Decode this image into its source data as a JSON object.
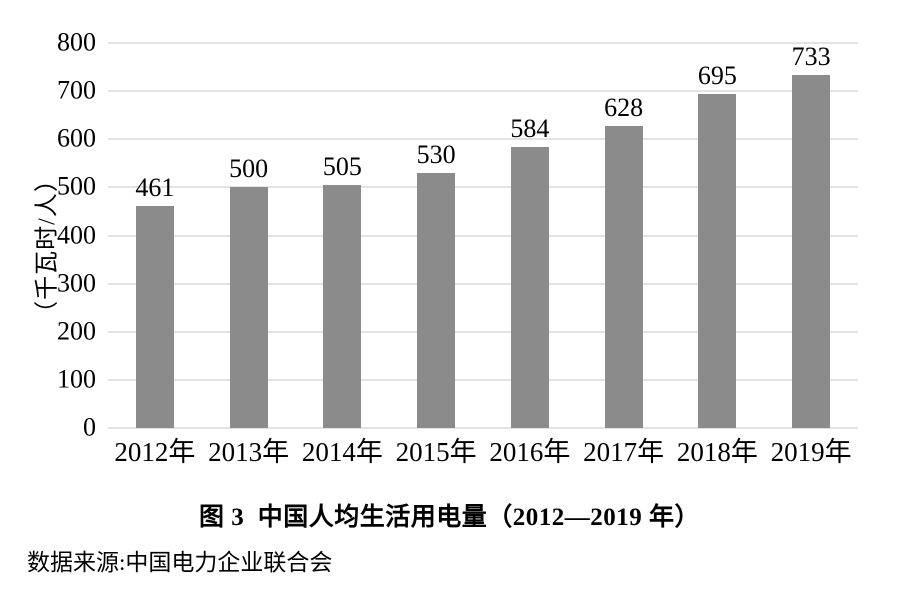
{
  "chart_data": {
    "type": "bar",
    "title": "图 3  中国人均生活用电量（2012—2019 年）",
    "categories": [
      "2012年",
      "2013年",
      "2014年",
      "2015年",
      "2016年",
      "2017年",
      "2018年",
      "2019年"
    ],
    "values": [
      461,
      500,
      505,
      530,
      584,
      628,
      695,
      733
    ],
    "ylabel": "（千瓦时/人）",
    "ylim": [
      0,
      800
    ],
    "yticks": [
      0,
      100,
      200,
      300,
      400,
      500,
      600,
      700,
      800
    ],
    "grid": true,
    "legend": "none",
    "bar_color": "#8b8b8b",
    "gridline_color": "#e3e3e3",
    "source": "数据来源:中国电力企业联合会"
  }
}
